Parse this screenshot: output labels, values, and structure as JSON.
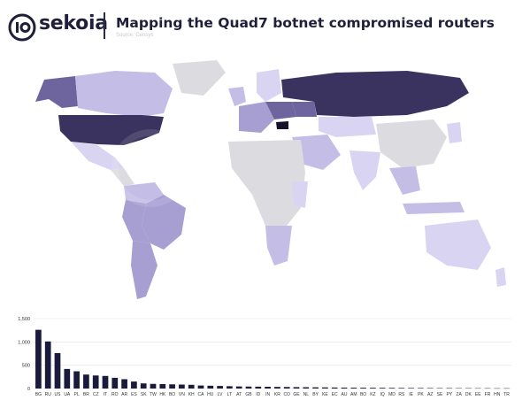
{
  "brand": {
    "name": "sekoia"
  },
  "header": {
    "title": "Mapping the Quad7 botnet compromised routers",
    "source": "Source: Censys"
  },
  "map_colors": {
    "no_data": "#dcdce0",
    "ocean": "#ffffff",
    "low": "#d9d4f2",
    "mid_low": "#c4bde6",
    "mid": "#a79ed2",
    "high": "#6e659e",
    "very_high": "#3a335f",
    "top": "#15132a"
  },
  "chart_data": {
    "type": "bar",
    "categories": [
      "BG",
      "RU",
      "US",
      "UA",
      "PL",
      "BR",
      "CZ",
      "IT",
      "RO",
      "AR",
      "ES",
      "SK",
      "TW",
      "HK",
      "BO",
      "VN",
      "KH",
      "CA",
      "HU",
      "LV",
      "LT",
      "AT",
      "GB",
      "ID",
      "IN",
      "KR",
      "CO",
      "GE",
      "NL",
      "BY",
      "KE",
      "EC",
      "AU",
      "AM",
      "BO",
      "KZ",
      "IQ",
      "MD",
      "RS",
      "IE",
      "PK",
      "AZ",
      "SE",
      "PY",
      "ZA",
      "DK",
      "EE",
      "FR",
      "HN",
      "TR"
    ],
    "values": [
      1260,
      1010,
      760,
      420,
      370,
      300,
      280,
      270,
      230,
      200,
      150,
      110,
      100,
      95,
      90,
      85,
      80,
      65,
      60,
      55,
      50,
      45,
      42,
      40,
      38,
      35,
      33,
      30,
      28,
      26,
      24,
      22,
      20,
      18,
      17,
      16,
      15,
      14,
      13,
      12,
      11,
      10,
      9,
      9,
      8,
      8,
      7,
      7,
      6,
      6
    ],
    "ylim": [
      0,
      1500
    ],
    "yticks": [
      "0",
      "500",
      "1,000",
      "1,500"
    ],
    "bar_color": "#1a1a3c",
    "grid": true
  }
}
